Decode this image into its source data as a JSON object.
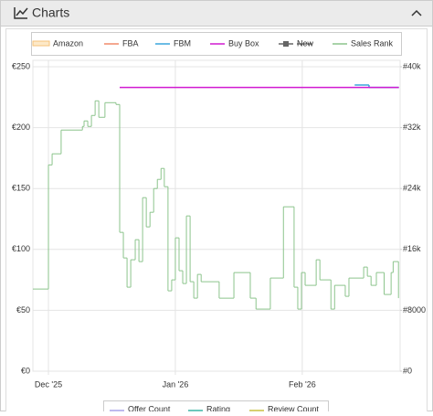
{
  "header": {
    "title": "Charts"
  },
  "chart_data": {
    "type": "line",
    "step": true,
    "xlim": [
      -3.8,
      85.9
    ],
    "xticks": [
      {
        "value": 0,
        "label": "Dec '25"
      },
      {
        "value": 31,
        "label": "Jan '26"
      },
      {
        "value": 62,
        "label": "Feb '26"
      }
    ],
    "ylim": [
      0,
      250
    ],
    "yticks": [
      {
        "value": 0,
        "label": "€0"
      },
      {
        "value": 50,
        "label": "€50"
      },
      {
        "value": 100,
        "label": "€100"
      },
      {
        "value": 150,
        "label": "€150"
      },
      {
        "value": 200,
        "label": "€200"
      },
      {
        "value": 250,
        "label": "€250"
      }
    ],
    "y2lim": [
      0,
      40000
    ],
    "y2ticks": [
      {
        "value": 0,
        "label": "#0"
      },
      {
        "value": 8000,
        "label": "#8000"
      },
      {
        "value": 16000,
        "label": "#16k"
      },
      {
        "value": 24000,
        "label": "#24k"
      },
      {
        "value": 32000,
        "label": "#32k"
      },
      {
        "value": 40000,
        "label": "#40k"
      }
    ],
    "grid": true,
    "series": [
      {
        "name": "Amazon",
        "color": "#f5c27a",
        "x": [],
        "values": []
      },
      {
        "name": "FBA",
        "color": "#f08a6a",
        "x": [],
        "values": []
      },
      {
        "name": "FBM",
        "color": "#3aa5dc",
        "x": [
          74.8,
          78.3,
          85.6
        ],
        "values": [
          235,
          233,
          233
        ]
      },
      {
        "name": "Buy Box",
        "color": "#d11ad1",
        "x": [
          17.4,
          85.6
        ],
        "values": [
          233,
          233
        ]
      },
      {
        "name": "New",
        "color": "#666666",
        "hidden": true,
        "x": [],
        "values": []
      },
      {
        "name": "Sales Rank",
        "color": "#8cc48c",
        "axis": "y2",
        "x": [
          -3.8,
          0,
          0.9,
          3.1,
          8.3,
          8.7,
          9.6,
          10.5,
          11.4,
          12.3,
          13.8,
          16.5,
          17.4,
          18.3,
          19.2,
          20.1,
          21.2,
          22.1,
          23,
          23.9,
          24.8,
          25.7,
          26.6,
          27.5,
          28.3,
          29.2,
          30.1,
          31,
          31.9,
          32.8,
          33.7,
          34.6,
          35.5,
          36.4,
          37.3,
          41.7,
          45.3,
          49.3,
          50.7,
          54.2,
          57.4,
          60,
          60.9,
          61.8,
          62.7,
          65.4,
          66.3,
          69,
          69.9,
          72.5,
          73.4,
          77,
          77.9,
          78.8,
          80.1,
          82,
          83.7,
          84.2,
          85.5
        ],
        "values": [
          10800,
          27100,
          28560,
          31680,
          32160,
          32880,
          32160,
          33600,
          35520,
          33360,
          35280,
          35040,
          18240,
          14880,
          11040,
          14640,
          17280,
          14400,
          22800,
          18960,
          20880,
          24000,
          25200,
          26640,
          24240,
          10560,
          12000,
          17520,
          13200,
          11520,
          20400,
          11760,
          9600,
          12720,
          11760,
          9600,
          12960,
          9600,
          8160,
          12240,
          21600,
          11040,
          8160,
          12960,
          11280,
          14640,
          12000,
          8160,
          11280,
          9840,
          12240,
          13680,
          12480,
          11280,
          12960,
          10080,
          12960,
          14400,
          9600
        ]
      }
    ],
    "legend2": [
      {
        "name": "Offer Count",
        "color": "#a9a3e8"
      },
      {
        "name": "Rating",
        "color": "#3bb5a5"
      },
      {
        "name": "Review Count",
        "color": "#c8c040"
      }
    ]
  }
}
